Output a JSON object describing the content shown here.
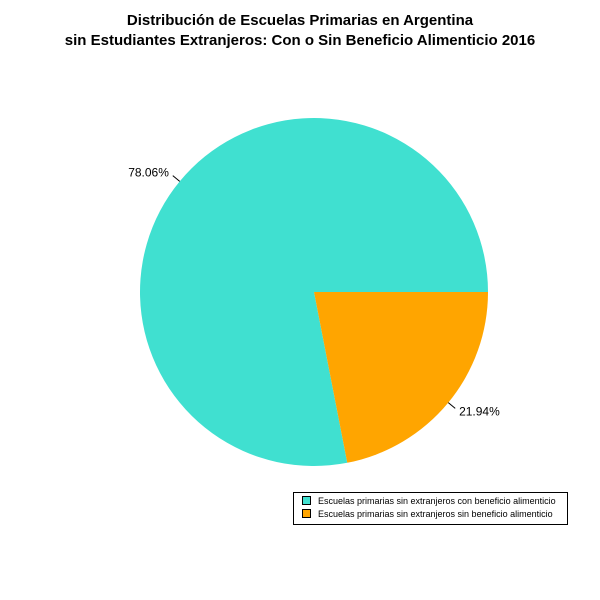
{
  "chart_data": {
    "type": "pie",
    "title_lines": [
      "Distribución de Escuelas Primarias en Argentina",
      "sin Estudiantes Extranjeros: Con o Sin Beneficio Alimenticio 2016"
    ],
    "slices": [
      {
        "label": "Escuelas primarias sin extranjeros con beneficio alimenticio",
        "value": 78.06,
        "value_label": "78.06%",
        "color": "#40E0D0"
      },
      {
        "label": "Escuelas primarias sin extranjeros sin beneficio alimenticio",
        "value": 21.94,
        "value_label": "21.94%",
        "color": "#FFA500"
      }
    ],
    "legend_position": "bottom-right"
  }
}
